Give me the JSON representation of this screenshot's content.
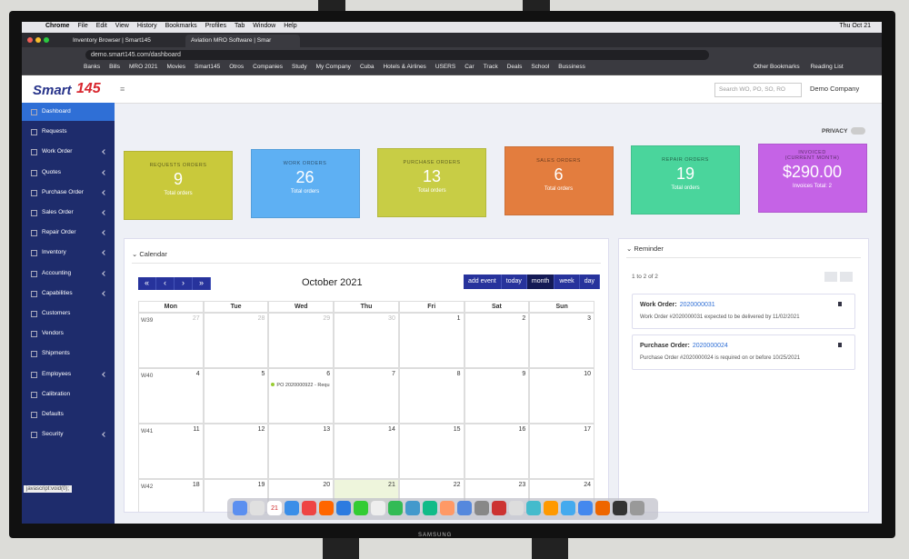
{
  "menubar": {
    "items": [
      "Chrome",
      "File",
      "Edit",
      "View",
      "History",
      "Bookmarks",
      "Profiles",
      "Tab",
      "Window",
      "Help"
    ],
    "clock": "Thu Oct 21"
  },
  "tabs": [
    "Inventory Browser | Smart145",
    "Aviation MRO Software | Smar"
  ],
  "url": "demo.smart145.com/dashboard",
  "bookmarks": [
    "Banks",
    "Bills",
    "MRO 2021",
    "Movies",
    "Smart145",
    "Otros",
    "Companies",
    "Study",
    "My Company",
    "Cuba",
    "Hotels & Airlines",
    "USERS",
    "Car",
    "Track",
    "Deals",
    "School",
    "Bussiness"
  ],
  "bookmarks_right": [
    "Other Bookmarks",
    "Reading List"
  ],
  "app": {
    "logo": "Smart",
    "logo_number": "145",
    "search": "Search WO, PO, SO, RO",
    "company": "Demo Company",
    "privacy": "PRIVACY",
    "status": "javascript:void(0);",
    "sidebar": [
      {
        "label": "Dashboard",
        "active": true
      },
      {
        "label": "Requests"
      },
      {
        "label": "Work Order",
        "sub": true
      },
      {
        "label": "Quotes",
        "sub": true
      },
      {
        "label": "Purchase Order",
        "sub": true
      },
      {
        "label": "Sales Order",
        "sub": true
      },
      {
        "label": "Repair Order",
        "sub": true
      },
      {
        "label": "Inventory",
        "sub": true
      },
      {
        "label": "Accounting",
        "sub": true
      },
      {
        "label": "Capabilities",
        "sub": true
      },
      {
        "label": "Customers"
      },
      {
        "label": "Vendors"
      },
      {
        "label": "Shipments"
      },
      {
        "label": "Employees",
        "sub": true
      },
      {
        "label": "Calibration"
      },
      {
        "label": "Defaults"
      },
      {
        "label": "Security",
        "sub": true
      }
    ],
    "cards": [
      {
        "label": "REQUESTS ORDERS",
        "value": "9",
        "note": "Total orders",
        "color": "#c9c93b"
      },
      {
        "label": "WORK ORDERS",
        "value": "26",
        "note": "Total orders",
        "color": "#5eb0f3"
      },
      {
        "label": "PURCHASE ORDERS",
        "value": "13",
        "note": "Total orders",
        "color": "#c8cd45"
      },
      {
        "label": "SALES ORDERS",
        "value": "6",
        "note": "Total orders",
        "color": "#e37d3e"
      },
      {
        "label": "REPAIR ORDERS",
        "value": "19",
        "note": "Total orders",
        "color": "#4ad59c"
      },
      {
        "label": "INVOICED",
        "label2": "(CURRENT MONTH)",
        "value": "$290.00",
        "note": "Invoices Total: 2",
        "color": "#c563e6"
      }
    ],
    "calendar": {
      "heading": "Calendar",
      "title": "October 2021",
      "nav": [
        "«",
        "‹",
        "›",
        "»"
      ],
      "buttons": [
        "add event",
        "today",
        "month",
        "week",
        "day"
      ],
      "weekdays": [
        "Mon",
        "Tue",
        "Wed",
        "Thu",
        "Fri",
        "Sat",
        "Sun"
      ],
      "weeks": [
        {
          "label": "W39",
          "days": [
            27,
            28,
            29,
            30,
            1,
            2,
            3
          ]
        },
        {
          "label": "W40",
          "days": [
            4,
            5,
            6,
            7,
            8,
            9,
            10
          ],
          "events": [
            {
              "day": 6,
              "text": "PO 2020000922 - Requ"
            }
          ]
        },
        {
          "label": "W41",
          "days": [
            11,
            12,
            13,
            14,
            15,
            16,
            17
          ]
        },
        {
          "label": "W42",
          "days": [
            18,
            19,
            20,
            21,
            22,
            23,
            24
          ]
        }
      ]
    },
    "reminder": {
      "heading": "Reminder",
      "count": "1 to 2 of 2",
      "items": [
        {
          "kind": "Work Order:",
          "number": "2020000031",
          "text": "Work Order #2020000031 expected to be delivered by 11/02/2021"
        },
        {
          "kind": "Purchase Order:",
          "number": "2020000024",
          "text": "Purchase Order #2020000024 is required on or before 10/25/2021"
        }
      ]
    }
  },
  "dock": {
    "calendar_day": "21"
  },
  "brand": "SAMSUNG"
}
